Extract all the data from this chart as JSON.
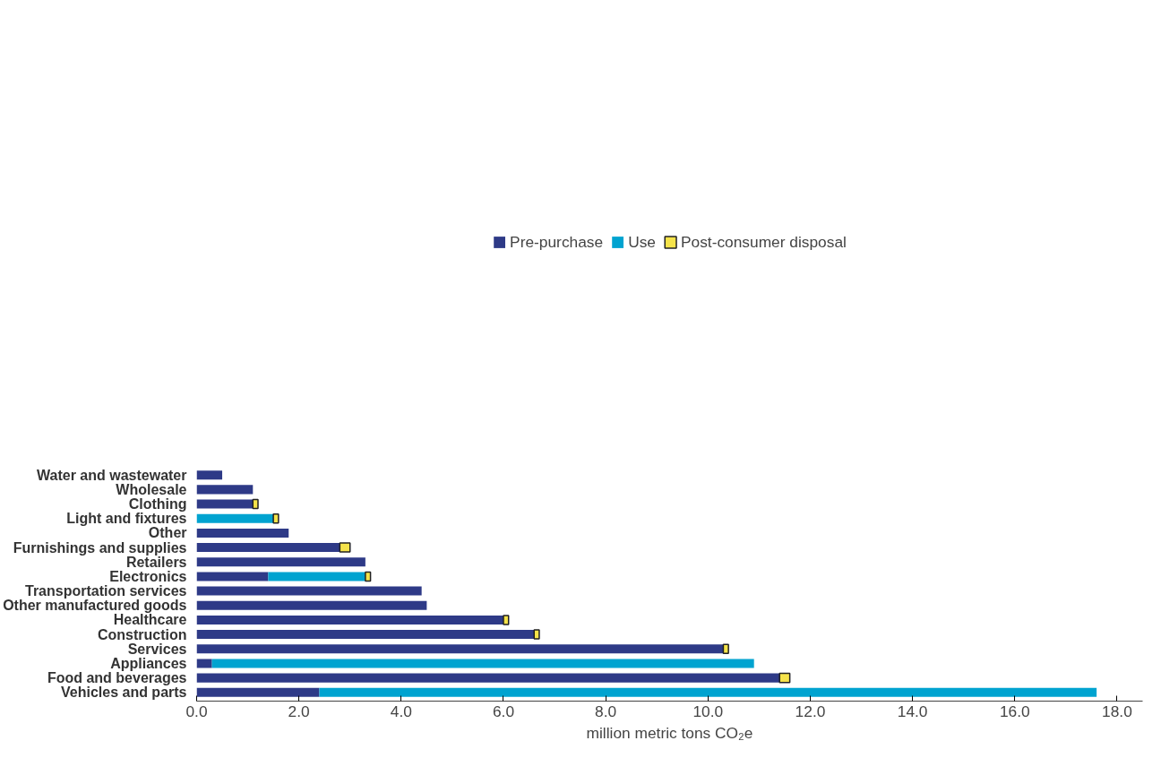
{
  "chart_data": {
    "type": "bar",
    "orientation": "horizontal",
    "stacked": true,
    "xlabel": "million metric tons CO₂e",
    "categories": [
      "Water and wastewater",
      "Wholesale",
      "Clothing",
      "Light and fixtures",
      "Other",
      "Furnishings and supplies",
      "Retailers",
      "Electronics",
      "Transportation services",
      "Other manufactured goods",
      "Healthcare",
      "Construction",
      "Services",
      "Appliances",
      "Food and beverages",
      "Vehicles and parts"
    ],
    "series": [
      {
        "name": "Pre-purchase",
        "color": "#2e3a87",
        "values": [
          0.5,
          1.1,
          1.1,
          null,
          1.8,
          2.8,
          3.3,
          1.4,
          4.4,
          4.5,
          6.0,
          6.6,
          10.3,
          0.3,
          11.4,
          2.4
        ]
      },
      {
        "name": "Use",
        "color": "#00a3d0",
        "values": [
          null,
          null,
          null,
          1.5,
          null,
          null,
          null,
          1.9,
          null,
          null,
          null,
          null,
          null,
          10.6,
          null,
          15.2
        ]
      },
      {
        "name": "Post-consumer disposal",
        "color": "#f5e34a",
        "values": [
          null,
          null,
          0.1,
          0.1,
          null,
          0.2,
          null,
          0.1,
          null,
          null,
          0.1,
          0.1,
          0.1,
          null,
          0.2,
          null
        ]
      }
    ],
    "xlim": [
      0,
      18.5
    ],
    "xticks": [
      {
        "value": 0,
        "label": "0.0"
      },
      {
        "value": 2,
        "label": "2.0"
      },
      {
        "value": 4,
        "label": "4.0"
      },
      {
        "value": 6,
        "label": "6.0"
      },
      {
        "value": 8,
        "label": "8.0"
      },
      {
        "value": 10,
        "label": "10.0"
      },
      {
        "value": 12,
        "label": "12.0"
      },
      {
        "value": 14,
        "label": "14.0"
      },
      {
        "value": 16,
        "label": "16.0"
      },
      {
        "value": 18,
        "label": "18.0"
      }
    ],
    "grid": false,
    "legend": "top"
  }
}
